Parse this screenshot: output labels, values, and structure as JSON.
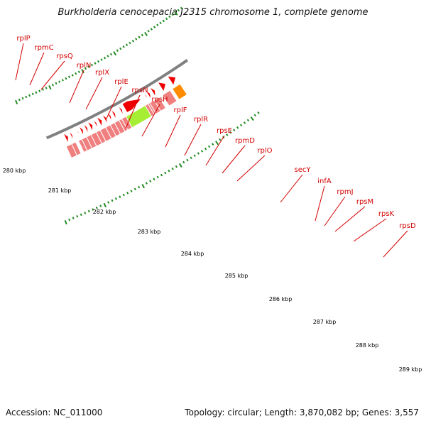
{
  "title": "Burkholderia cenocepacia J2315 chromosome 1, complete genome",
  "footer": {
    "accession": "Accession: NC_011000",
    "summary": "Topology: circular; Length: 3,870,082 bp; Genes: 3,557"
  },
  "colors": {
    "gene_rect": "#f08080",
    "arrow": "#ee0000",
    "secY": "#a6ee33",
    "highlight_orange": "#ff8c00",
    "backbone": "#808080",
    "tick": "#228b22",
    "label": "#d40000"
  },
  "ruler_labels": [
    "280 kbp",
    "281 kbp",
    "282 kbp",
    "283 kbp",
    "284 kbp",
    "285 kbp",
    "286 kbp",
    "287 kbp",
    "288 kbp",
    "289 kbp"
  ],
  "genes": [
    "rplP",
    "rpmC",
    "rpsQ",
    "rplN",
    "rplX",
    "rplE",
    "rpsN",
    "rpsH",
    "rplF",
    "rplR",
    "rpsE",
    "rpmD",
    "rplO",
    "secY",
    "infA",
    "rpmJ",
    "rpsM",
    "rpsK",
    "rpsD"
  ]
}
